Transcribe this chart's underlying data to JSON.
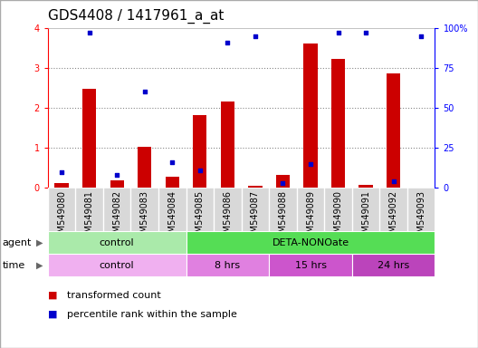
{
  "title": "GDS4408 / 1417961_a_at",
  "samples": [
    "GSM549080",
    "GSM549081",
    "GSM549082",
    "GSM549083",
    "GSM549084",
    "GSM549085",
    "GSM549086",
    "GSM549087",
    "GSM549088",
    "GSM549089",
    "GSM549090",
    "GSM549091",
    "GSM549092",
    "GSM549093"
  ],
  "transformed_count": [
    0.12,
    2.47,
    0.18,
    1.02,
    0.27,
    1.82,
    2.15,
    0.05,
    0.32,
    3.6,
    3.22,
    0.08,
    2.87,
    0.0
  ],
  "percentile_rank": [
    10,
    97,
    8,
    60,
    16,
    11,
    91,
    95,
    3,
    15,
    97,
    97,
    4,
    95
  ],
  "ylim_left": [
    0,
    4
  ],
  "ylim_right": [
    0,
    100
  ],
  "yticks_left": [
    0,
    1,
    2,
    3,
    4
  ],
  "yticks_right": [
    0,
    25,
    50,
    75,
    100
  ],
  "yticklabels_right": [
    "0",
    "25",
    "50",
    "75",
    "100%"
  ],
  "bar_color": "#cc0000",
  "dot_color": "#0000cc",
  "agent_groups": [
    {
      "label": "control",
      "start": 0,
      "end": 5,
      "color": "#aaeaaa"
    },
    {
      "label": "DETA-NONOate",
      "start": 5,
      "end": 14,
      "color": "#55dd55"
    }
  ],
  "time_groups": [
    {
      "label": "control",
      "start": 0,
      "end": 5,
      "color": "#f0b0f0"
    },
    {
      "label": "8 hrs",
      "start": 5,
      "end": 8,
      "color": "#e080e0"
    },
    {
      "label": "15 hrs",
      "start": 8,
      "end": 11,
      "color": "#cc55cc"
    },
    {
      "label": "24 hrs",
      "start": 11,
      "end": 14,
      "color": "#bb44bb"
    }
  ],
  "legend_items": [
    {
      "label": "transformed count",
      "color": "#cc0000"
    },
    {
      "label": "percentile rank within the sample",
      "color": "#0000cc"
    }
  ],
  "background_color": "#ffffff",
  "grid_color": "#888888",
  "title_fontsize": 11,
  "tick_fontsize": 7,
  "label_fontsize": 8,
  "border_color": "#aaaaaa"
}
